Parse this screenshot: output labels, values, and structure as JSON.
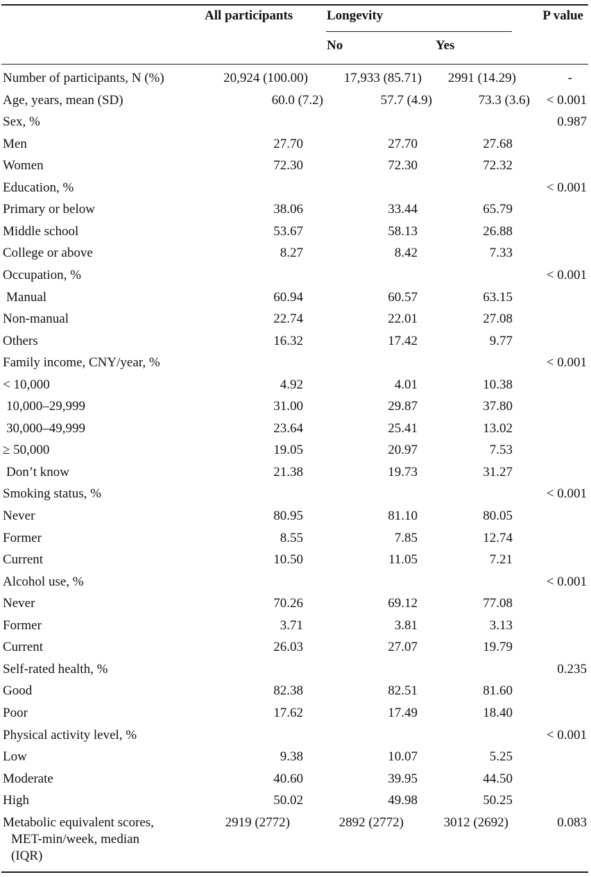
{
  "headers": {
    "all": "All participants",
    "longevity": "Longevity",
    "p": "P value",
    "no": "No",
    "yes": "Yes"
  },
  "rows": [
    {
      "label": "Number of participants, N (%)",
      "all": "20,924 (100.00)",
      "no": "17,933 (85.71)",
      "yes": "2991 (14.29)",
      "p": "-"
    },
    {
      "label": "Age, years, mean (SD)",
      "all": "60.0 (7.2)",
      "no": "57.7 (4.9)",
      "yes": "73.3 (3.6)",
      "p": "< 0.001"
    },
    {
      "label": "Sex, %",
      "all": "",
      "no": "",
      "yes": "",
      "p": "0.987"
    },
    {
      "label": "Men",
      "all": "27.70",
      "no": "27.70",
      "yes": "27.68",
      "p": ""
    },
    {
      "label": "Women",
      "all": "72.30",
      "no": "72.30",
      "yes": "72.32",
      "p": ""
    },
    {
      "label": "Education, %",
      "all": "",
      "no": "",
      "yes": "",
      "p": "< 0.001"
    },
    {
      "label": "Primary or below",
      "all": "38.06",
      "no": "33.44",
      "yes": "65.79",
      "p": ""
    },
    {
      "label": "Middle school",
      "all": "53.67",
      "no": "58.13",
      "yes": "26.88",
      "p": ""
    },
    {
      "label": "College or above",
      "all": "8.27",
      "no": "8.42",
      "yes": "7.33",
      "p": ""
    },
    {
      "label": "Occupation, %",
      "all": "",
      "no": "",
      "yes": "",
      "p": "< 0.001"
    },
    {
      "label": "Manual",
      "all": "60.94",
      "no": "60.57",
      "yes": "63.15",
      "p": "",
      "indent": true
    },
    {
      "label": "Non-manual",
      "all": "22.74",
      "no": "22.01",
      "yes": "27.08",
      "p": ""
    },
    {
      "label": "Others",
      "all": "16.32",
      "no": "17.42",
      "yes": "9.77",
      "p": ""
    },
    {
      "label": "Family income, CNY/year, %",
      "all": "",
      "no": "",
      "yes": "",
      "p": "< 0.001"
    },
    {
      "label": "< 10,000",
      "all": "4.92",
      "no": "4.01",
      "yes": "10.38",
      "p": ""
    },
    {
      "label": "10,000–29,999",
      "all": "31.00",
      "no": "29.87",
      "yes": "37.80",
      "p": "",
      "indent": true
    },
    {
      "label": "30,000–49,999",
      "all": "23.64",
      "no": "25.41",
      "yes": "13.02",
      "p": "",
      "indent": true
    },
    {
      "label": "≥ 50,000",
      "all": "19.05",
      "no": "20.97",
      "yes": "7.53",
      "p": ""
    },
    {
      "label": "Don’t know",
      "all": "21.38",
      "no": "19.73",
      "yes": "31.27",
      "p": "",
      "indent": true
    },
    {
      "label": "Smoking status, %",
      "all": "",
      "no": "",
      "yes": "",
      "p": "< 0.001"
    },
    {
      "label": "Never",
      "all": "80.95",
      "no": "81.10",
      "yes": "80.05",
      "p": ""
    },
    {
      "label": "Former",
      "all": "8.55",
      "no": "7.85",
      "yes": "12.74",
      "p": ""
    },
    {
      "label": "Current",
      "all": "10.50",
      "no": "11.05",
      "yes": "7.21",
      "p": ""
    },
    {
      "label": "Alcohol use, %",
      "all": "",
      "no": "",
      "yes": "",
      "p": "< 0.001"
    },
    {
      "label": "Never",
      "all": "70.26",
      "no": "69.12",
      "yes": "77.08",
      "p": ""
    },
    {
      "label": "Former",
      "all": "3.71",
      "no": "3.81",
      "yes": "3.13",
      "p": ""
    },
    {
      "label": "Current",
      "all": "26.03",
      "no": "27.07",
      "yes": "19.79",
      "p": ""
    },
    {
      "label": "Self-rated health, %",
      "all": "",
      "no": "",
      "yes": "",
      "p": "0.235"
    },
    {
      "label": "Good",
      "all": "82.38",
      "no": "82.51",
      "yes": "81.60",
      "p": ""
    },
    {
      "label": "Poor",
      "all": "17.62",
      "no": "17.49",
      "yes": "18.40",
      "p": ""
    },
    {
      "label": "Physical activity level, %",
      "all": "",
      "no": "",
      "yes": "",
      "p": "< 0.001"
    },
    {
      "label": "Low",
      "all": "9.38",
      "no": "10.07",
      "yes": "5.25",
      "p": ""
    },
    {
      "label": "Moderate",
      "all": "40.60",
      "no": "39.95",
      "yes": "44.50",
      "p": ""
    },
    {
      "label": "High",
      "all": "50.02",
      "no": "49.98",
      "yes": "50.25",
      "p": ""
    },
    {
      "label": "Metabolic equivalent scores, MET-min/week, median (IQR)",
      "all": "2919 (2772)",
      "no": "2892 (2772)",
      "yes": "3012 (2692)",
      "p": "0.083",
      "multiline": true
    }
  ]
}
